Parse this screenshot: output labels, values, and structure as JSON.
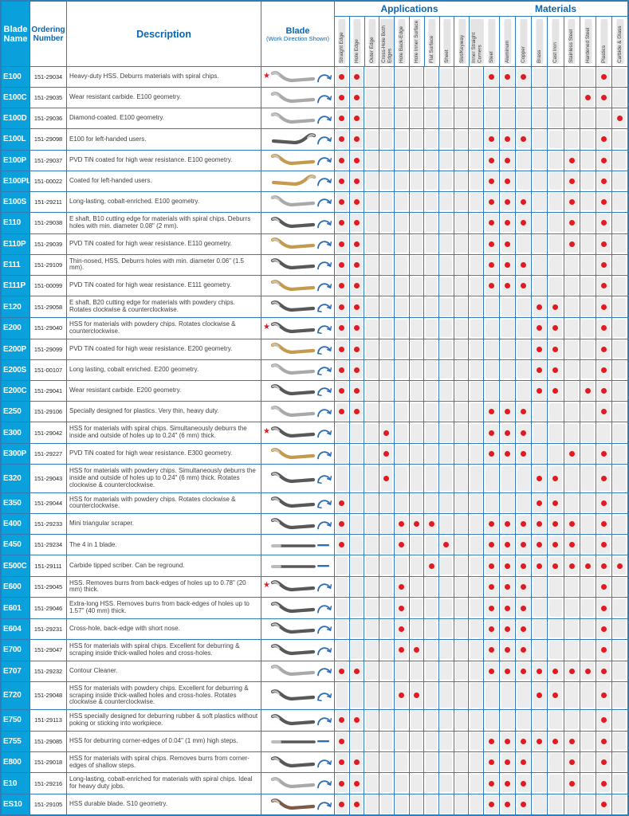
{
  "header": {
    "blade_name": "Blade Name",
    "ordering_number": "Ordering Number",
    "description": "Description",
    "blade_title": "Blade",
    "blade_subtitle": "(Work Direction Shown)",
    "applications_title": "Applications",
    "materials_title": "Materials",
    "application_columns": [
      "Straight Edge",
      "Hole Edge",
      "Outer Edge",
      "Cross-Hole Both Edges",
      "Hole Back-Edge",
      "Hole Inner Surface",
      "Flat Surface",
      "Sheet",
      "Slot/Keyway",
      "Inner Straight Corners"
    ],
    "material_columns": [
      "Steel",
      "Aluminum",
      "Copper",
      "Brass",
      "Cast Iron",
      "Stainless Steel",
      "Hardened Steel",
      "Plastics",
      "Carbide & Glass"
    ]
  },
  "icons": {
    "application-dot": "red filled circle = blade suits this application",
    "material-dot": "red filled circle = blade suits this material",
    "star-icon": "red five-point star marker",
    "rotation-cw-arrow-icon": "blue curved arrow, clockwise work direction",
    "rotation-both-arrow-icon": "blue curved arrow with two heads, rotates both directions",
    "straight-arrow-icon": "blue straight stroke work-direction mark"
  },
  "colors": {
    "grid_blue": "#2e7cb8",
    "name_column_blue": "#0aa0dc",
    "heading_blue": "#0a66b2",
    "dot_red": "#e01b22",
    "cell_tile_gray": "#ececec",
    "blade_silver": "#a9a9a9",
    "blade_dark": "#585858",
    "blade_gold": "#c49a4e",
    "blade_brown": "#7d5a43",
    "arrow_blue": "#2e6db4"
  },
  "rows": [
    {
      "name": "E100",
      "order": "151-29034",
      "desc": "Heavy-duty HSS. Deburrs materials with spiral chips.",
      "star": true,
      "color": "silver",
      "shape": "s",
      "arrow": "cw",
      "apps": [
        0,
        1
      ],
      "mats": [
        0,
        1,
        2,
        7
      ]
    },
    {
      "name": "E100C",
      "order": "151-29035",
      "desc": "Wear resistant carbide. E100 geometry.",
      "star": false,
      "color": "silver",
      "shape": "s",
      "arrow": "cw",
      "apps": [
        0,
        1
      ],
      "mats": [
        6,
        7
      ]
    },
    {
      "name": "E100D",
      "order": "151-29036",
      "desc": "Diamond-coated. E100 geometry.",
      "star": false,
      "color": "silver",
      "shape": "s",
      "arrow": "cw",
      "apps": [
        0,
        1
      ],
      "mats": [
        8
      ]
    },
    {
      "name": "E100L",
      "order": "151-29098",
      "desc": "E100 for left-handed users.",
      "star": false,
      "color": "dark",
      "shape": "s",
      "flip": true,
      "arrow": "cw",
      "apps": [
        0,
        1
      ],
      "mats": [
        0,
        1,
        2,
        7
      ]
    },
    {
      "name": "E100P",
      "order": "151-29037",
      "desc": "PVD TiN coated for high wear resistance. E100 geometry.",
      "star": false,
      "color": "gold",
      "shape": "s",
      "arrow": "cw",
      "apps": [
        0,
        1
      ],
      "mats": [
        0,
        1,
        5,
        7
      ]
    },
    {
      "name": "E100PL",
      "order": "151-00022",
      "desc": "Coated for left-handed users.",
      "star": false,
      "color": "gold",
      "shape": "s",
      "flip": true,
      "arrow": "cw",
      "apps": [
        0,
        1
      ],
      "mats": [
        0,
        1,
        5,
        7
      ]
    },
    {
      "name": "E100S",
      "order": "151-29211",
      "desc": "Long-lasting, cobalt-enriched. E100 geometry.",
      "star": false,
      "color": "silver",
      "shape": "s",
      "arrow": "cw",
      "apps": [
        0,
        1
      ],
      "mats": [
        0,
        1,
        2,
        5,
        7
      ]
    },
    {
      "name": "E110",
      "order": "151-29038",
      "desc": "E shaft, B10 cutting edge for materials with spiral chips. Deburrs holes with min. diameter 0.08\" (2 mm).",
      "star": false,
      "color": "dark",
      "shape": "s",
      "arrow": "cw",
      "apps": [
        0,
        1
      ],
      "mats": [
        0,
        1,
        2,
        5,
        7
      ]
    },
    {
      "name": "E110P",
      "order": "151-29039",
      "desc": "PVD TiN coated for high wear resistance. E110 geometry.",
      "star": false,
      "color": "gold",
      "shape": "s",
      "arrow": "cw",
      "apps": [
        0,
        1
      ],
      "mats": [
        0,
        1,
        5,
        7
      ]
    },
    {
      "name": "E111",
      "order": "151-29109",
      "desc": "Thin-nosed, HSS. Deburrs holes with min. diameter 0.06\" (1.5 mm).",
      "star": false,
      "color": "dark",
      "shape": "s",
      "arrow": "cw",
      "apps": [
        0,
        1
      ],
      "mats": [
        0,
        1,
        2,
        7
      ]
    },
    {
      "name": "E111P",
      "order": "151-00099",
      "desc": "PVD TiN coated for high wear resistance. E111 geometry.",
      "star": false,
      "color": "gold",
      "shape": "s",
      "arrow": "cw",
      "apps": [
        0,
        1
      ],
      "mats": [
        0,
        1,
        2,
        7
      ]
    },
    {
      "name": "E120",
      "order": "151-29058",
      "desc": "E shaft, B20 cutting edge for materials with powdery chips. Rotates clockwise & counterclockwise.",
      "star": false,
      "color": "dark",
      "shape": "s",
      "arrow": "double",
      "apps": [
        0,
        1
      ],
      "mats": [
        3,
        4,
        7
      ]
    },
    {
      "name": "E200",
      "order": "151-29040",
      "desc": "HSS for materials with powdery chips. Rotates clockwise & counterclockwise.",
      "star": true,
      "color": "dark",
      "shape": "s",
      "arrow": "double",
      "apps": [
        0,
        1
      ],
      "mats": [
        3,
        4,
        7
      ]
    },
    {
      "name": "E200P",
      "order": "151-29099",
      "desc": "PVD TiN coated for high wear resistance. E200 geometry.",
      "star": false,
      "color": "gold",
      "shape": "s",
      "arrow": "double",
      "apps": [
        0,
        1
      ],
      "mats": [
        3,
        4,
        7
      ]
    },
    {
      "name": "E200S",
      "order": "151-00107",
      "desc": "Long lasting, cobalt enriched. E200 geometry.",
      "star": false,
      "color": "silver",
      "shape": "s",
      "arrow": "double",
      "apps": [
        0,
        1
      ],
      "mats": [
        3,
        4,
        7
      ]
    },
    {
      "name": "E200C",
      "order": "151-29041",
      "desc": "Wear resistant carbide. E200 geometry.",
      "star": false,
      "color": "dark",
      "shape": "s",
      "arrow": "double",
      "apps": [
        0,
        1
      ],
      "mats": [
        3,
        4,
        6,
        7
      ]
    },
    {
      "name": "E250",
      "order": "151-29106",
      "desc": "Specially designed for plastics. Very thin, heavy duty.",
      "star": false,
      "color": "silver",
      "shape": "s",
      "arrow": "cw",
      "apps": [
        0,
        1
      ],
      "mats": [
        0,
        1,
        2,
        7
      ]
    },
    {
      "name": "E300",
      "order": "151-29042",
      "desc": "HSS for materials with spiral chips. Simultaneously deburrs the inside and outside of holes up to 0.24\" (6 mm) thick.",
      "star": true,
      "color": "dark",
      "shape": "s",
      "arrow": "cw",
      "apps": [
        3
      ],
      "mats": [
        0,
        1,
        2
      ]
    },
    {
      "name": "E300P",
      "order": "151-29227",
      "desc": "PVD TiN coated for high wear resistance. E300 geometry.",
      "star": false,
      "color": "gold",
      "shape": "s",
      "arrow": "cw",
      "apps": [
        3
      ],
      "mats": [
        0,
        1,
        2,
        5,
        7
      ]
    },
    {
      "name": "E320",
      "order": "151-29043",
      "desc": "HSS for materials with powdery chips. Simultaneously deburrs the inside and outside of holes up to 0.24\" (6 mm) thick. Rotates clockwise & counterclockwise.",
      "star": false,
      "color": "dark",
      "shape": "s",
      "arrow": "double",
      "apps": [
        3
      ],
      "mats": [
        3,
        4,
        7
      ]
    },
    {
      "name": "E350",
      "order": "151-29044",
      "desc": "HSS for materials with powdery chips. Rotates clockwise & counterclockwise.",
      "star": false,
      "color": "dark",
      "shape": "s",
      "arrow": "double",
      "apps": [
        0
      ],
      "mats": [
        3,
        4,
        7
      ]
    },
    {
      "name": "E400",
      "order": "151-29233",
      "desc": "Mini triangular scraper.",
      "star": false,
      "color": "dark",
      "shape": "s",
      "arrow": "cw",
      "apps": [
        0,
        4,
        5,
        6
      ],
      "mats": [
        0,
        1,
        2,
        3,
        4,
        5,
        7
      ]
    },
    {
      "name": "E450",
      "order": "151-29234",
      "desc": "The 4 in 1 blade.",
      "star": false,
      "color": "dark",
      "shape": "rod",
      "arrow": "line",
      "apps": [
        0,
        4,
        7
      ],
      "mats": [
        0,
        1,
        2,
        3,
        4,
        5,
        7
      ]
    },
    {
      "name": "E500C",
      "order": "151-29111",
      "desc": "Carbide tipped scriber. Can be reground.",
      "star": false,
      "color": "dark",
      "shape": "rod",
      "arrow": "line",
      "apps": [
        6
      ],
      "mats": [
        0,
        1,
        2,
        3,
        4,
        5,
        6,
        7,
        8
      ]
    },
    {
      "name": "E600",
      "order": "151-29045",
      "desc": "HSS. Removes burrs from back-edges of holes up to 0.78\" (20 mm) thick.",
      "star": true,
      "color": "dark",
      "shape": "s",
      "arrow": "cw",
      "apps": [
        4
      ],
      "mats": [
        0,
        1,
        2,
        7
      ]
    },
    {
      "name": "E601",
      "order": "151-29046",
      "desc": "Extra-long HSS. Removes burrs from back-edges of holes up to 1.57\" (40 mm) thick.",
      "star": false,
      "color": "dark",
      "shape": "s",
      "arrow": "cw",
      "apps": [
        4
      ],
      "mats": [
        0,
        1,
        2,
        7
      ]
    },
    {
      "name": "E604",
      "order": "151-29231",
      "desc": "Cross-hole, back-edge with short nose.",
      "star": false,
      "color": "dark",
      "shape": "s",
      "arrow": "cw",
      "apps": [
        4
      ],
      "mats": [
        0,
        1,
        2,
        7
      ]
    },
    {
      "name": "E700",
      "order": "151-29047",
      "desc": "HSS for materials with spiral chips. Excellent for deburring & scraping inside thick-walled holes and cross-holes.",
      "star": false,
      "color": "dark",
      "shape": "s",
      "arrow": "cw",
      "apps": [
        4,
        5
      ],
      "mats": [
        0,
        1,
        2,
        7
      ]
    },
    {
      "name": "E707",
      "order": "151-29232",
      "desc": "Contour Cleaner.",
      "star": false,
      "color": "silver",
      "shape": "s",
      "arrow": "cw",
      "apps": [
        0,
        1
      ],
      "mats": [
        0,
        1,
        2,
        3,
        4,
        5,
        6,
        7
      ]
    },
    {
      "name": "E720",
      "order": "151-29048",
      "desc": "HSS for materials with powdery chips. Excellent for deburring & scraping inside thick-walled holes and cross-holes. Rotates clockwise & counterclockwise.",
      "star": false,
      "color": "dark",
      "shape": "s",
      "arrow": "double",
      "apps": [
        4,
        5
      ],
      "mats": [
        3,
        4,
        7
      ]
    },
    {
      "name": "E750",
      "order": "151-29113",
      "desc": "HSS specially designed for deburring rubber & soft plastics without poking or sticking into workpiece.",
      "star": false,
      "color": "dark",
      "shape": "s",
      "arrow": "cw",
      "apps": [
        0,
        1
      ],
      "mats": [
        7
      ]
    },
    {
      "name": "E755",
      "order": "151-29085",
      "desc": "HSS for deburring corner-edges of 0.04\" (1 mm) high steps.",
      "star": false,
      "color": "dark",
      "shape": "rod",
      "arrow": "line",
      "apps": [
        0
      ],
      "mats": [
        0,
        1,
        2,
        3,
        4,
        5,
        7
      ]
    },
    {
      "name": "E800",
      "order": "151-29018",
      "desc": "HSS for materials with spiral chips. Removes burrs from corner-edges of shallow steps.",
      "star": false,
      "color": "dark",
      "shape": "s",
      "arrow": "cw",
      "apps": [
        0,
        1
      ],
      "mats": [
        0,
        1,
        2,
        5,
        7
      ]
    },
    {
      "name": "E10",
      "order": "151-29216",
      "desc": "Long-lasting, cobalt-enriched for materials with spiral chips. Ideal for heavy duty jobs.",
      "star": false,
      "color": "silver",
      "shape": "s",
      "arrow": "cw",
      "apps": [
        0,
        1
      ],
      "mats": [
        0,
        1,
        2,
        5,
        7
      ]
    },
    {
      "name": "ES10",
      "order": "151-29105",
      "desc": "HSS durable blade. S10 geometry.",
      "star": false,
      "color": "brown",
      "shape": "s",
      "arrow": "cw",
      "apps": [
        0,
        1
      ],
      "mats": [
        0,
        1,
        2,
        7
      ]
    }
  ]
}
